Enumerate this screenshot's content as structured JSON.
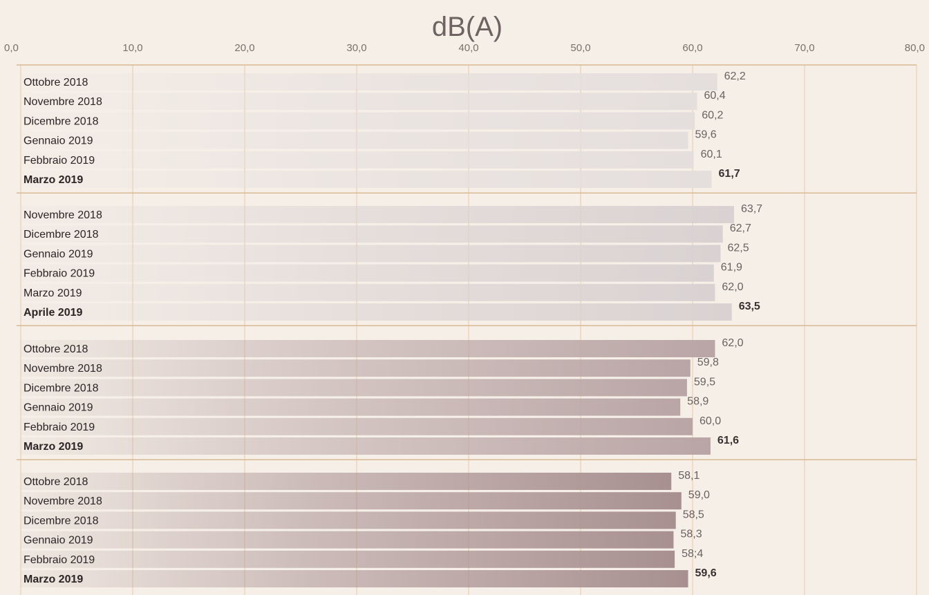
{
  "chart_data": {
    "type": "bar",
    "orientation": "horizontal",
    "unit_label": "dB(A)",
    "xlim": [
      0,
      80
    ],
    "x_ticks": [
      "0,0",
      "10,0",
      "20,0",
      "30,0",
      "40,0",
      "50,0",
      "60,0",
      "70,0",
      "80,0"
    ],
    "grid": true,
    "groups": [
      {
        "color": "#e4dedd",
        "bars": [
          {
            "label": "Ottobre 2018",
            "value": 62.2,
            "value_label": "62,2",
            "highlight": false
          },
          {
            "label": "Novembre 2018",
            "value": 60.4,
            "value_label": "60,4",
            "highlight": false
          },
          {
            "label": "Dicembre 2018",
            "value": 60.2,
            "value_label": "60,2",
            "highlight": false
          },
          {
            "label": "Gennaio 2019",
            "value": 59.6,
            "value_label": "59,6",
            "highlight": false
          },
          {
            "label": "Febbraio 2019",
            "value": 60.1,
            "value_label": "60,1",
            "highlight": false
          },
          {
            "label": "Marzo 2019",
            "value": 61.7,
            "value_label": "61,7",
            "highlight": true
          }
        ]
      },
      {
        "color": "#d9d2d2",
        "bars": [
          {
            "label": "Novembre 2018",
            "value": 63.7,
            "value_label": "63,7",
            "highlight": false
          },
          {
            "label": "Dicembre 2018",
            "value": 62.7,
            "value_label": "62,7",
            "highlight": false
          },
          {
            "label": "Gennaio 2019",
            "value": 62.5,
            "value_label": "62,5",
            "highlight": false
          },
          {
            "label": "Febbraio 2019",
            "value": 61.9,
            "value_label": "61,9",
            "highlight": false
          },
          {
            "label": "Marzo 2019",
            "value": 62.0,
            "value_label": "62,0",
            "highlight": false
          },
          {
            "label": "Aprile 2019",
            "value": 63.5,
            "value_label": "63,5",
            "highlight": true
          }
        ]
      },
      {
        "color": "#b9a5a5",
        "bars": [
          {
            "label": "Ottobre 2018",
            "value": 62.0,
            "value_label": "62,0",
            "highlight": false
          },
          {
            "label": "Novembre 2018",
            "value": 59.8,
            "value_label": "59,8",
            "highlight": false
          },
          {
            "label": "Dicembre 2018",
            "value": 59.5,
            "value_label": "59,5",
            "highlight": false
          },
          {
            "label": "Gennaio 2019",
            "value": 58.9,
            "value_label": "58,9",
            "highlight": false
          },
          {
            "label": "Febbraio 2019",
            "value": 60.0,
            "value_label": "60,0",
            "highlight": false
          },
          {
            "label": "Marzo 2019",
            "value": 61.6,
            "value_label": "61,6",
            "highlight": true
          }
        ]
      },
      {
        "color": "#a89090",
        "bars": [
          {
            "label": "Ottobre 2018",
            "value": 58.1,
            "value_label": "58,1",
            "highlight": false
          },
          {
            "label": "Novembre 2018",
            "value": 59.0,
            "value_label": "59,0",
            "highlight": false
          },
          {
            "label": "Dicembre 2018",
            "value": 58.5,
            "value_label": "58,5",
            "highlight": false
          },
          {
            "label": "Gennaio 2019",
            "value": 58.3,
            "value_label": "58,3",
            "highlight": false
          },
          {
            "label": "Febbraio 2019",
            "value": 58.4,
            "value_label": "58;4",
            "highlight": false
          },
          {
            "label": "Marzo 2019",
            "value": 59.6,
            "value_label": "59,6",
            "highlight": true
          }
        ]
      }
    ],
    "colors": {
      "background": "#f6efe8",
      "gridline": "#e7c9a6",
      "separator": "#d8b894"
    }
  }
}
